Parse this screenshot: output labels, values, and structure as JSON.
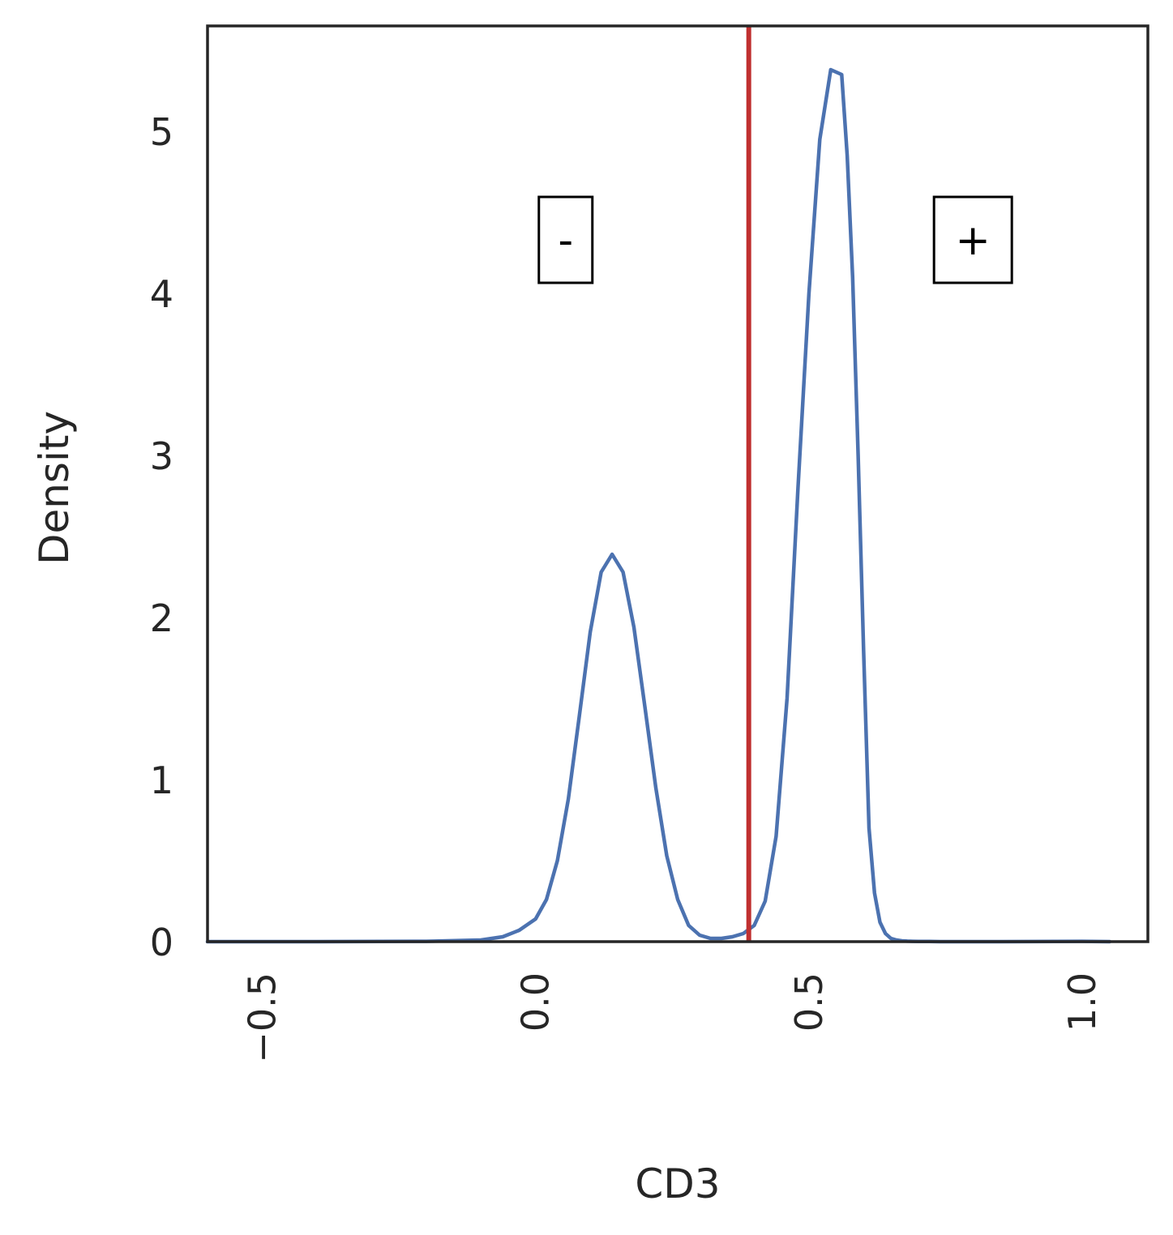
{
  "chart_data": {
    "type": "line",
    "title": "",
    "xlabel": "CD3",
    "ylabel": "Density",
    "xlim": [
      -0.6,
      1.12
    ],
    "ylim": [
      0,
      5.65
    ],
    "grid": false,
    "legend": "none",
    "x_ticks": [
      {
        "value": -0.5,
        "label": "−0.5"
      },
      {
        "value": 0.0,
        "label": "0.0"
      },
      {
        "value": 0.5,
        "label": "0.5"
      },
      {
        "value": 1.0,
        "label": "1.0"
      }
    ],
    "y_ticks": [
      {
        "value": 0,
        "label": "0"
      },
      {
        "value": 1,
        "label": "1"
      },
      {
        "value": 2,
        "label": "2"
      },
      {
        "value": 3,
        "label": "3"
      },
      {
        "value": 4,
        "label": "4"
      },
      {
        "value": 5,
        "label": "5"
      }
    ],
    "series": [
      {
        "color": "#4c72b0",
        "x": [
          -0.6,
          -0.4,
          -0.2,
          -0.1,
          -0.06,
          -0.03,
          0.0,
          0.02,
          0.04,
          0.06,
          0.08,
          0.1,
          0.12,
          0.14,
          0.16,
          0.18,
          0.2,
          0.22,
          0.24,
          0.26,
          0.28,
          0.3,
          0.32,
          0.34,
          0.36,
          0.38,
          0.4,
          0.42,
          0.44,
          0.46,
          0.48,
          0.5,
          0.52,
          0.54,
          0.56,
          0.57,
          0.58,
          0.59,
          0.6,
          0.61,
          0.62,
          0.63,
          0.64,
          0.65,
          0.66,
          0.67,
          0.68,
          0.69,
          0.7,
          0.72,
          0.74,
          0.78,
          0.85,
          1.0,
          1.05
        ],
        "y": [
          0.0,
          0.0,
          0.002,
          0.01,
          0.03,
          0.07,
          0.14,
          0.26,
          0.5,
          0.88,
          1.39,
          1.91,
          2.28,
          2.39,
          2.28,
          1.94,
          1.45,
          0.95,
          0.53,
          0.26,
          0.1,
          0.04,
          0.02,
          0.02,
          0.03,
          0.05,
          0.1,
          0.25,
          0.65,
          1.5,
          2.8,
          4.0,
          4.95,
          5.38,
          5.35,
          4.85,
          4.1,
          3.0,
          1.8,
          0.7,
          0.3,
          0.12,
          0.05,
          0.02,
          0.01,
          0.005,
          0.003,
          0.002,
          0.001,
          0.001,
          0.0,
          0.0,
          0.0,
          0.002,
          0.0
        ]
      }
    ],
    "threshold": {
      "x": 0.39,
      "color": "#c03030"
    },
    "annotations": [
      {
        "text": "-",
        "x": 0.055,
        "y": 4.33
      },
      {
        "text": "+",
        "x": 0.8,
        "y": 4.33
      }
    ]
  }
}
